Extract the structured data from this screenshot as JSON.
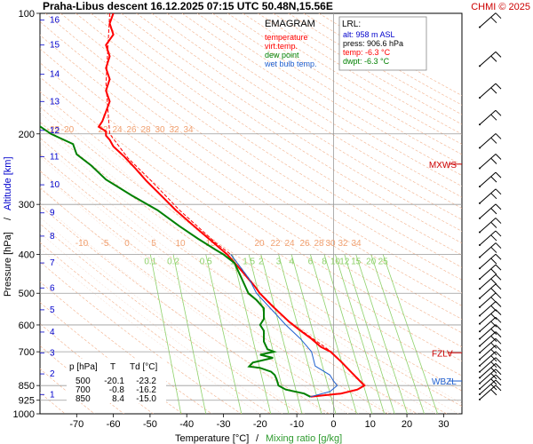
{
  "header": {
    "title": "Praha-Libus   descent   16.12.2025 07:15 UTC  50.48N,15.56E",
    "copyright": "CHMI © 2025"
  },
  "legend": {
    "title": "EMAGRAM",
    "items": [
      {
        "label": "temperature",
        "color": "#ff0000"
      },
      {
        "label": "virt.temp.",
        "color": "#ff0000"
      },
      {
        "label": "dew point",
        "color": "#008000"
      },
      {
        "label": "wet bulb temp.",
        "color": "#1e5fd0"
      }
    ]
  },
  "lrl": {
    "title": "LRL:",
    "lines": [
      {
        "text": "alt: 958 m ASL",
        "color": "#0000cc"
      },
      {
        "text": "press: 906.6 hPa",
        "color": "#000000"
      },
      {
        "text": "temp: -6.3 °C",
        "color": "#ff0000"
      },
      {
        "text": "dwpt: -6.3 °C",
        "color": "#008000"
      }
    ]
  },
  "table": {
    "headers": [
      "p [hPa]",
      "T",
      "Td [°C]"
    ],
    "rows": [
      [
        "500",
        "-20.1",
        "-23.2"
      ],
      [
        "700",
        "-0.8",
        "-16.2"
      ],
      [
        "850",
        "8.4",
        "-15.0"
      ]
    ]
  },
  "axes": {
    "xlabel_temp": "Temperature [°C]",
    "xlabel_sep": "/",
    "xlabel_mix": "Mixing ratio [g/kg]",
    "ylabel_pressure": "Pressure [hPa]",
    "ylabel_sep": "/",
    "ylabel_alt": "Altitude [km]"
  },
  "markers": [
    {
      "label": "MXWS",
      "p": 238,
      "color": "#cc0000"
    },
    {
      "label": "FZLV",
      "p": 704,
      "color": "#cc0000"
    },
    {
      "label": "WBZL",
      "p": 828,
      "color": "#1e5fd0"
    }
  ],
  "chart_data": {
    "type": "line",
    "title": "Praha-Libus   descent   16.12.2025 07:15 UTC  50.48N,15.56E",
    "xlabel": "Temperature [°C] / Mixing ratio [g/kg]",
    "ylabel": "Pressure [hPa] / Altitude [km]",
    "xlim": [
      -80,
      35
    ],
    "ylim": [
      1000,
      100
    ],
    "y_scale": "log",
    "x_ticks": [
      -70,
      -60,
      -50,
      -40,
      -30,
      -20,
      -10,
      0,
      10,
      20,
      30
    ],
    "y_ticks": [
      100,
      200,
      300,
      400,
      500,
      600,
      700,
      850,
      925,
      1000
    ],
    "altitude_km_ticks": [
      {
        "km": 1,
        "p": 895
      },
      {
        "km": 2,
        "p": 795
      },
      {
        "km": 3,
        "p": 705
      },
      {
        "km": 4,
        "p": 625
      },
      {
        "km": 5,
        "p": 550
      },
      {
        "km": 6,
        "p": 485
      },
      {
        "km": 7,
        "p": 420
      },
      {
        "km": 8,
        "p": 360
      },
      {
        "km": 9,
        "p": 315
      },
      {
        "km": 10,
        "p": 268
      },
      {
        "km": 11,
        "p": 228
      },
      {
        "km": 12,
        "p": 196
      },
      {
        "km": 13,
        "p": 166
      },
      {
        "km": 14,
        "p": 142
      },
      {
        "km": 15,
        "p": 120
      },
      {
        "km": 16,
        "p": 104
      }
    ],
    "mixing_ratio_labels_400": [
      "0.1",
      "0.2",
      "0.5",
      "1",
      "1.5",
      "2",
      "3",
      "4",
      "6",
      "8",
      "10",
      "12",
      "15",
      "20",
      "25"
    ],
    "dry_adiabat_labels_200": [
      "-25",
      "-20",
      "22",
      "24",
      "26",
      "28",
      "30",
      "32",
      "34"
    ],
    "dry_adiabat_labels_375": [
      "-10",
      "-5",
      "0",
      "5",
      "10",
      "15",
      "20",
      "22",
      "24",
      "26",
      "28",
      "30",
      "32",
      "34"
    ],
    "series": [
      {
        "name": "temperature",
        "color": "#ff0000",
        "points": [
          [
            -60,
            100
          ],
          [
            -61,
            106
          ],
          [
            -60,
            113
          ],
          [
            -62,
            120
          ],
          [
            -61,
            128
          ],
          [
            -62,
            137
          ],
          [
            -61,
            146
          ],
          [
            -62,
            156
          ],
          [
            -61,
            166
          ],
          [
            -62,
            176
          ],
          [
            -63,
            186
          ],
          [
            -64,
            192
          ],
          [
            -62,
            197
          ],
          [
            -62,
            202
          ],
          [
            -61,
            207
          ],
          [
            -60,
            215
          ],
          [
            -57,
            228
          ],
          [
            -54,
            244
          ],
          [
            -51,
            262
          ],
          [
            -47,
            285
          ],
          [
            -43,
            310
          ],
          [
            -38,
            340
          ],
          [
            -33,
            372
          ],
          [
            -29,
            400
          ],
          [
            -25,
            440
          ],
          [
            -21.5,
            480
          ],
          [
            -20.1,
            500
          ],
          [
            -16.5,
            540
          ],
          [
            -12,
            590
          ],
          [
            -9,
            620
          ],
          [
            -6,
            650
          ],
          [
            -3.5,
            680
          ],
          [
            -0.8,
            700
          ],
          [
            2,
            740
          ],
          [
            5,
            790
          ],
          [
            8.4,
            850
          ],
          [
            6.5,
            870
          ],
          [
            2,
            890
          ],
          [
            -6.3,
            906.6
          ]
        ]
      },
      {
        "name": "virt.temp.",
        "color": "#ff0000",
        "points": [
          [
            -61,
            100
          ],
          [
            -62,
            150
          ],
          [
            -61,
            200
          ],
          [
            -56,
            230
          ],
          [
            -50,
            260
          ],
          [
            -42,
            310
          ],
          [
            -32,
            375
          ],
          [
            -28,
            400
          ],
          [
            -20,
            500
          ],
          [
            -12,
            590
          ],
          [
            -0.6,
            700
          ],
          [
            8.6,
            850
          ],
          [
            6.7,
            870
          ],
          [
            2.2,
            890
          ],
          [
            -6.1,
            906.6
          ]
        ]
      },
      {
        "name": "dew point",
        "color": "#008000",
        "points": [
          [
            -87,
            175
          ],
          [
            -82,
            186
          ],
          [
            -77,
            200
          ],
          [
            -71,
            212
          ],
          [
            -70,
            225
          ],
          [
            -66,
            240
          ],
          [
            -62,
            260
          ],
          [
            -55,
            285
          ],
          [
            -48,
            310
          ],
          [
            -42,
            340
          ],
          [
            -37,
            365
          ],
          [
            -32,
            390
          ],
          [
            -30,
            400
          ],
          [
            -27,
            420
          ],
          [
            -25,
            460
          ],
          [
            -23.2,
            500
          ],
          [
            -21,
            520
          ],
          [
            -19,
            545
          ],
          [
            -19,
            580
          ],
          [
            -20,
            600
          ],
          [
            -19,
            620
          ],
          [
            -19,
            660
          ],
          [
            -18,
            690
          ],
          [
            -16.2,
            700
          ],
          [
            -20,
            712
          ],
          [
            -16.5,
            725
          ],
          [
            -22,
            745
          ],
          [
            -23,
            762
          ],
          [
            -20,
            768
          ],
          [
            -17,
            785
          ],
          [
            -16,
            800
          ],
          [
            -15.5,
            820
          ],
          [
            -15,
            850
          ],
          [
            -13,
            870
          ],
          [
            -8,
            890
          ],
          [
            -6.3,
            906.6
          ]
        ]
      },
      {
        "name": "wet bulb temp.",
        "color": "#1e5fd0",
        "points": [
          [
            -28,
            400
          ],
          [
            -23,
            460
          ],
          [
            -21,
            500
          ],
          [
            -16,
            560
          ],
          [
            -13,
            600
          ],
          [
            -9,
            650
          ],
          [
            -6,
            700
          ],
          [
            -5,
            760
          ],
          [
            -1,
            800
          ],
          [
            0,
            828
          ],
          [
            1,
            850
          ],
          [
            -1,
            880
          ],
          [
            -6.3,
            906.6
          ]
        ]
      }
    ]
  }
}
